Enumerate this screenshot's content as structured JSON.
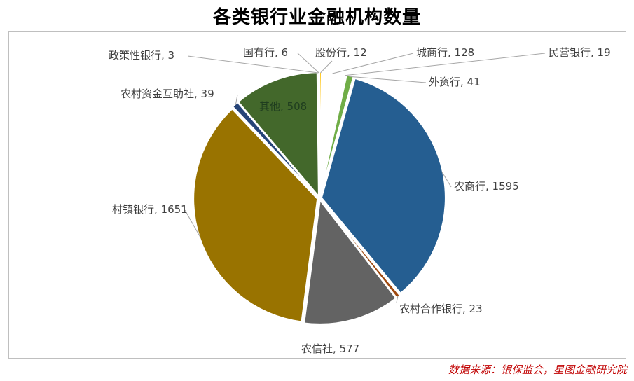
{
  "chart_data": {
    "type": "pie",
    "title": "各类银行业金融机构数量",
    "slices": [
      {
        "label": "股份行",
        "value": 12,
        "color": "#ffc000"
      },
      {
        "label": "城商行",
        "value": 128,
        "color": "#ffffff"
      },
      {
        "label": "民营银行",
        "value": 19,
        "color": "#ffffff"
      },
      {
        "label": "外资行",
        "value": 41,
        "color": "#70ad47"
      },
      {
        "label": "农商行",
        "value": 1595,
        "color": "#255e91"
      },
      {
        "label": "农村合作银行",
        "value": 23,
        "color": "#9e480e"
      },
      {
        "label": "农信社",
        "value": 577,
        "color": "#636363"
      },
      {
        "label": "村镇银行",
        "value": 1651,
        "color": "#997300"
      },
      {
        "label": "农村资金互助社",
        "value": 39,
        "color": "#264478"
      },
      {
        "label": "其他",
        "value": 508,
        "color": "#43682b"
      },
      {
        "label": "政策性银行",
        "value": 3,
        "color": "#4472c4"
      },
      {
        "label": "国有行",
        "value": 6,
        "color": "#ed7d31"
      }
    ],
    "labels": [
      "股份行, 12",
      "城商行, 128",
      "民营银行, 19",
      "外资行, 41",
      "农商行, 1595",
      "农村合作银行, 23",
      "农信社, 577",
      "村镇银行, 1651",
      "农村资金互助社, 39",
      "其他, 508",
      "政策性银行, 3",
      "国有行, 6"
    ]
  },
  "source_note": "数据来源：银保监会，星图金融研究院"
}
